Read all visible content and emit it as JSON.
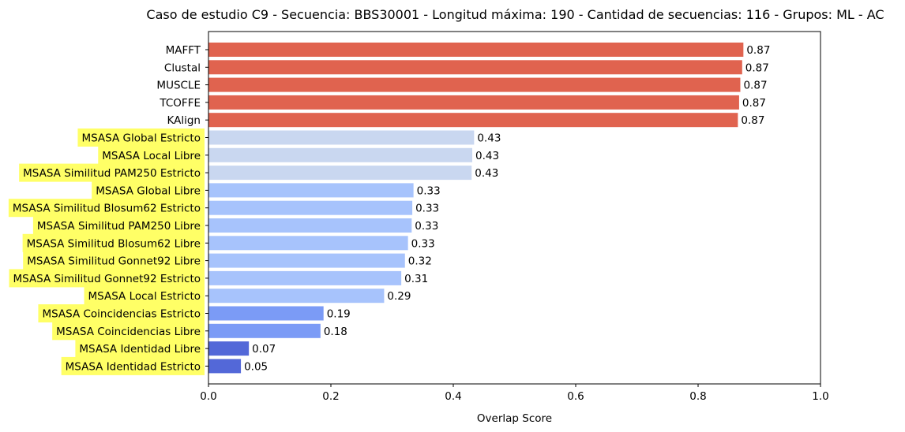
{
  "chart_data": {
    "type": "bar",
    "orientation": "horizontal",
    "title": "Caso de estudio C9 - Secuencia: BBS30001 - Longitud máxima: 190 - Cantidad de secuencias: 116 - Grupos: ML - AC",
    "xlabel": "Overlap Score",
    "ylabel": "",
    "xlim": [
      0,
      1.0
    ],
    "xticks": [
      0.0,
      0.2,
      0.4,
      0.6,
      0.8,
      1.0
    ],
    "xtick_labels": [
      "0.0",
      "0.2",
      "0.4",
      "0.6",
      "0.8",
      "1.0"
    ],
    "grid": false,
    "categories": [
      "MAFFT",
      "Clustal",
      "MUSCLE",
      "TCOFFE",
      "KAlign",
      "MSASA Global Estricto",
      "MSASA Local Libre",
      "MSASA Similitud PAM250 Estricto",
      "MSASA Global Libre",
      "MSASA Similitud Blosum62 Estricto",
      "MSASA Similitud PAM250 Libre",
      "MSASA Similitud Blosum62 Libre",
      "MSASA Similitud Gonnet92 Libre",
      "MSASA Similitud Gonnet92 Estricto",
      "MSASA Local Estricto",
      "MSASA Coincidencias Estricto",
      "MSASA Coincidencias Libre",
      "MSASA Identidad Libre",
      "MSASA Identidad Estricto"
    ],
    "values": [
      0.874,
      0.872,
      0.869,
      0.867,
      0.865,
      0.434,
      0.431,
      0.43,
      0.335,
      0.333,
      0.332,
      0.326,
      0.321,
      0.315,
      0.287,
      0.188,
      0.183,
      0.066,
      0.053
    ],
    "value_labels": [
      "0.87",
      "0.87",
      "0.87",
      "0.87",
      "0.87",
      "0.43",
      "0.43",
      "0.43",
      "0.33",
      "0.33",
      "0.33",
      "0.33",
      "0.32",
      "0.31",
      "0.29",
      "0.19",
      "0.18",
      "0.07",
      "0.05"
    ],
    "bar_colors": [
      "#e0634f",
      "#e0634f",
      "#e0634f",
      "#e0634f",
      "#e0634f",
      "#c9d7f0",
      "#c9d7f0",
      "#c9d7f0",
      "#a7c3fc",
      "#a7c3fc",
      "#a7c3fc",
      "#a7c3fc",
      "#a7c3fc",
      "#a7c3fc",
      "#a7c3fc",
      "#7b9bf6",
      "#7b9bf6",
      "#5368d8",
      "#5368d8"
    ],
    "highlighted_label_color": "#ffff66",
    "highlighted_categories": [
      "MSASA Global Estricto",
      "MSASA Local Libre",
      "MSASA Similitud PAM250 Estricto",
      "MSASA Global Libre",
      "MSASA Similitud Blosum62 Estricto",
      "MSASA Similitud PAM250 Libre",
      "MSASA Similitud Blosum62 Libre",
      "MSASA Similitud Gonnet92 Libre",
      "MSASA Similitud Gonnet92 Estricto",
      "MSASA Local Estricto",
      "MSASA Coincidencias Estricto",
      "MSASA Coincidencias Libre",
      "MSASA Identidad Libre",
      "MSASA Identidad Estricto"
    ]
  }
}
